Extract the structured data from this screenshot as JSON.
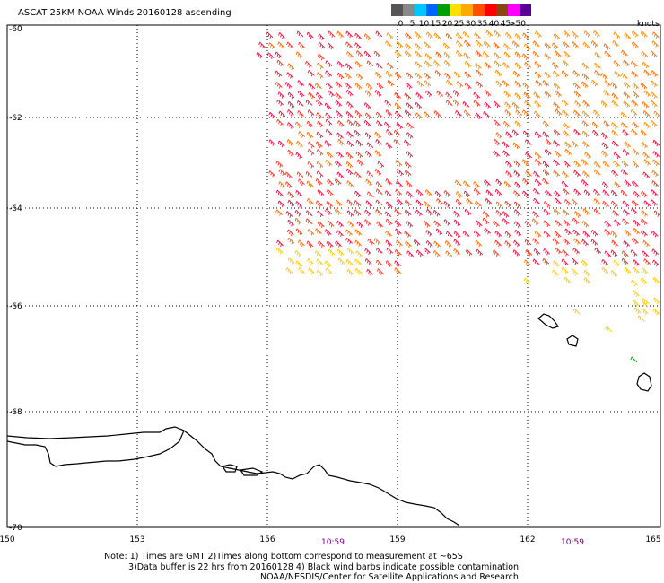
{
  "header": {
    "title": "ASCAT 25KM NOAA Winds 20160128 ascending"
  },
  "legend": {
    "unit": "knots",
    "labels": [
      "0",
      "5",
      "10",
      "15",
      "20",
      "25",
      "30",
      "35",
      "40",
      "45",
      ">50"
    ],
    "colors": [
      "#555555",
      "#888888",
      "#00c8ff",
      "#0064ff",
      "#00a000",
      "#ffe000",
      "#ffaa00",
      "#ff5000",
      "#ff0000",
      "#8b4513",
      "#ff00ff",
      "#5a0096"
    ]
  },
  "axes": {
    "lon_labels": [
      "150",
      "153",
      "156",
      "159",
      "162",
      "165"
    ],
    "lat_labels": [
      "-60",
      "-62",
      "-64",
      "-66",
      "-68",
      "-70"
    ]
  },
  "times": [
    "10:59",
    "10:59"
  ],
  "notes": {
    "line1": "Note: 1) Times are GMT 2)Times along bottom correspond to measurement at ~65S",
    "line2": "3)Data buffer is 22 hrs from 20160128 4) Black wind barbs indicate possible contamination",
    "line3": "NOAA/NESDIS/Center for Satellite Applications and Research"
  }
}
